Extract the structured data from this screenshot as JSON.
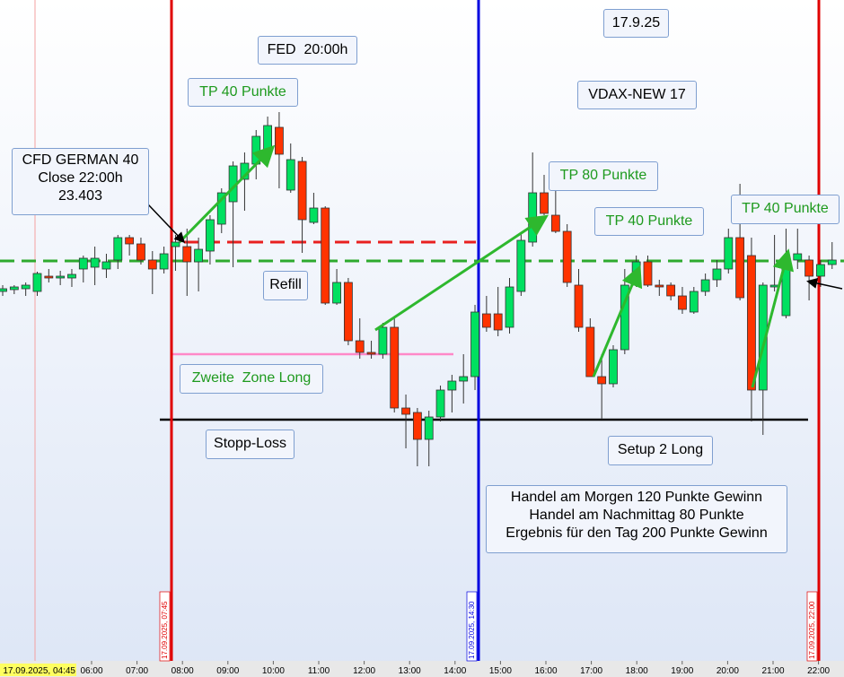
{
  "chart_data": {
    "type": "candlestick",
    "up_color": "#00e060",
    "down_color": "#ff3300",
    "ylim": [
      22954,
      23694
    ],
    "xtick_labels": [
      "06:00",
      "07:00",
      "08:00",
      "09:00",
      "10:00",
      "11:00",
      "12:00",
      "13:00",
      "14:00",
      "15:00",
      "16:00",
      "17:00",
      "18:00",
      "19:00",
      "20:00",
      "21:00",
      "22:00"
    ],
    "start_label": "i. 17.09.2025, 04:45",
    "markers": [
      {
        "label": "17.09.2025, 07:45",
        "color": "#e00000"
      },
      {
        "label": "17.09.2025, 14:30",
        "color": "#0000e0"
      },
      {
        "label": "17.09.2025, 22:00",
        "color": "#e00000"
      }
    ],
    "levels": [
      {
        "value": 23403,
        "color": "#2eaa2e",
        "dashed": true
      },
      {
        "value": 23424,
        "color": "#e82020",
        "dashed": true
      },
      {
        "value": 23299,
        "color": "#ff88c8",
        "dashed": false
      },
      {
        "value": 23226,
        "color": "#000000",
        "dashed": false
      }
    ],
    "ohlc": [
      [
        23369,
        23376,
        23364,
        23372
      ],
      [
        23371,
        23376,
        23366,
        23374
      ],
      [
        23372,
        23379,
        23364,
        23376
      ],
      [
        23369,
        23391,
        23364,
        23389
      ],
      [
        23386,
        23394,
        23379,
        23384
      ],
      [
        23384,
        23392,
        23376,
        23386
      ],
      [
        23384,
        23394,
        23374,
        23388
      ],
      [
        23394,
        23409,
        23379,
        23406
      ],
      [
        23396,
        23419,
        23376,
        23406
      ],
      [
        23394,
        23411,
        23384,
        23402
      ],
      [
        23404,
        23432,
        23394,
        23429
      ],
      [
        23429,
        23432,
        23409,
        23422
      ],
      [
        23422,
        23429,
        23399,
        23404
      ],
      [
        23404,
        23414,
        23366,
        23394
      ],
      [
        23394,
        23419,
        23389,
        23411
      ],
      [
        23419,
        23432,
        23392,
        23424
      ],
      [
        23419,
        23439,
        23364,
        23402
      ],
      [
        23402,
        23429,
        23369,
        23416
      ],
      [
        23414,
        23454,
        23399,
        23449
      ],
      [
        23444,
        23484,
        23434,
        23479
      ],
      [
        23469,
        23514,
        23396,
        23509
      ],
      [
        23494,
        23524,
        23459,
        23512
      ],
      [
        23511,
        23549,
        23494,
        23542
      ],
      [
        23526,
        23564,
        23514,
        23554
      ],
      [
        23552,
        23569,
        23484,
        23522
      ],
      [
        23482,
        23534,
        23479,
        23516
      ],
      [
        23514,
        23519,
        23412,
        23449
      ],
      [
        23446,
        23479,
        23444,
        23462
      ],
      [
        23462,
        23464,
        23354,
        23356
      ],
      [
        23356,
        23394,
        23354,
        23379
      ],
      [
        23379,
        23384,
        23309,
        23314
      ],
      [
        23314,
        23339,
        23294,
        23301
      ],
      [
        23301,
        23314,
        23294,
        23299
      ],
      [
        23299,
        23334,
        23294,
        23329
      ],
      [
        23329,
        23339,
        23234,
        23239
      ],
      [
        23239,
        23254,
        23194,
        23232
      ],
      [
        23234,
        23239,
        23174,
        23204
      ],
      [
        23204,
        23236,
        23174,
        23229
      ],
      [
        23229,
        23264,
        23224,
        23259
      ],
      [
        23259,
        23276,
        23234,
        23269
      ],
      [
        23269,
        23299,
        23244,
        23274
      ],
      [
        23274,
        23354,
        23259,
        23346
      ],
      [
        23344,
        23364,
        23324,
        23329
      ],
      [
        23344,
        23374,
        23319,
        23326
      ],
      [
        23329,
        23384,
        23322,
        23374
      ],
      [
        23369,
        23434,
        23364,
        23426
      ],
      [
        23424,
        23524,
        23419,
        23479
      ],
      [
        23479,
        23499,
        23454,
        23456
      ],
      [
        23454,
        23494,
        23434,
        23436
      ],
      [
        23436,
        23444,
        23374,
        23379
      ],
      [
        23376,
        23394,
        23324,
        23329
      ],
      [
        23329,
        23339,
        23274,
        23274
      ],
      [
        23274,
        23299,
        23226,
        23266
      ],
      [
        23266,
        23309,
        23262,
        23304
      ],
      [
        23304,
        23394,
        23299,
        23376
      ],
      [
        23376,
        23409,
        23374,
        23402
      ],
      [
        23402,
        23409,
        23374,
        23376
      ],
      [
        23376,
        23382,
        23364,
        23374
      ],
      [
        23376,
        23379,
        23359,
        23364
      ],
      [
        23364,
        23374,
        23344,
        23349
      ],
      [
        23346,
        23374,
        23344,
        23369
      ],
      [
        23369,
        23389,
        23364,
        23382
      ],
      [
        23382,
        23404,
        23374,
        23394
      ],
      [
        23394,
        23439,
        23389,
        23429
      ],
      [
        23429,
        23489,
        23359,
        23362
      ],
      [
        23409,
        23429,
        23224,
        23259
      ],
      [
        23259,
        23379,
        23209,
        23376
      ],
      [
        23374,
        23432,
        23369,
        23376
      ],
      [
        23342,
        23439,
        23339,
        23404
      ],
      [
        23404,
        23439,
        23394,
        23411
      ],
      [
        23404,
        23409,
        23359,
        23386
      ],
      [
        23386,
        23404,
        23374,
        23399
      ],
      [
        23399,
        23424,
        23394,
        23404
      ]
    ],
    "annotations": [
      {
        "lines": [
          "FED  20:00h"
        ],
        "color": "#000000"
      },
      {
        "lines": [
          "TP 40 Punkte"
        ],
        "color": "#1e9a1e"
      },
      {
        "lines": [
          "17.9.25"
        ],
        "color": "#000000"
      },
      {
        "lines": [
          "VDAX-NEW 17"
        ],
        "color": "#000000"
      },
      {
        "lines": [
          "CFD GERMAN 40",
          "Close 22:00h",
          "23.403"
        ],
        "color": "#000000"
      },
      {
        "lines": [
          "TP 80 Punkte"
        ],
        "color": "#1e9a1e"
      },
      {
        "lines": [
          "TP 40 Punkte"
        ],
        "color": "#1e9a1e"
      },
      {
        "lines": [
          "TP 40 Punkte"
        ],
        "color": "#1e9a1e"
      },
      {
        "lines": [
          "Refill"
        ],
        "color": "#000000"
      },
      {
        "lines": [
          "Zweite  Zone Long"
        ],
        "color": "#1e9a1e"
      },
      {
        "lines": [
          "Stopp-Loss"
        ],
        "color": "#000000"
      },
      {
        "lines": [
          "Setup 2 Long"
        ],
        "color": "#000000"
      },
      {
        "lines": [
          "Handel am Morgen 120 Punkte Gewinn",
          "Handel am Nachmittag 80 Punkte",
          "Ergebnis für den Tag 200 Punkte Gewinn"
        ],
        "color": "#000000"
      }
    ]
  }
}
